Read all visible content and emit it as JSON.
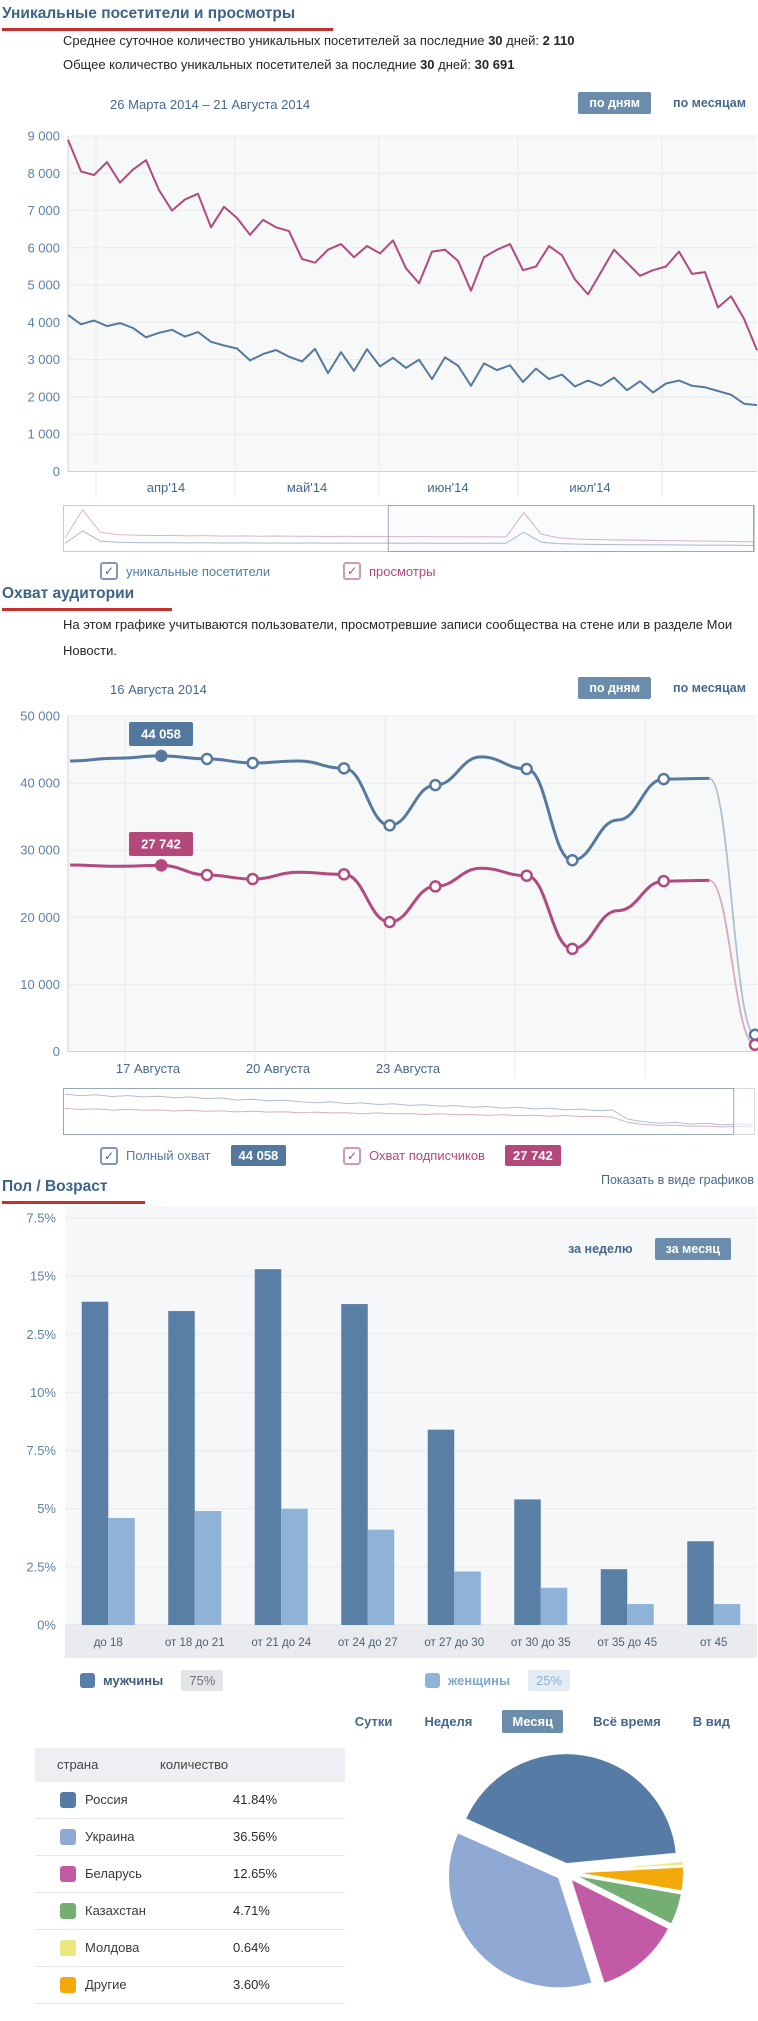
{
  "ui": {
    "heading_underline_color": "#C5302E",
    "accent_button_bg": "#6B8CAB"
  },
  "section1": {
    "heading": "Уникальные посетители и просмотры",
    "stat1_text": "Среднее суточное количество уникальных посетителей за последние",
    "stat1_bold": "30",
    "stat1_text2": "дней:",
    "stat1_value": "2 110",
    "stat2_text": "Общее количество уникальных посетителей за последние",
    "stat2_bold": "30",
    "stat2_text2": "дней:",
    "stat2_value": "30 691",
    "range_label": "26 Марта 2014 – 21 Августа 2014",
    "btn_by_days": "по дням",
    "btn_by_months": "по месяцам",
    "legend1_label": "уникальные посетители",
    "legend2_label": "просмотры"
  },
  "section2": {
    "heading": "Охват аудитории",
    "description": "На этом графике учитываются пользователи, просмотревшие записи сообщества на стене или в разделе Мои Новости.",
    "date_label": "16 Августа 2014",
    "btn_by_days": "по дням",
    "btn_by_months": "по месяцам",
    "legend1_label": "Полный охват",
    "legend1_badge": "44 058",
    "legend2_label": "Охват подписчиков",
    "legend2_badge": "27 742",
    "show_as_graphs_link": "Показать в виде графиков"
  },
  "section3": {
    "heading": "Пол / Возраст",
    "btn_week": "за неделю",
    "btn_month": "за месяц",
    "legend_male": "мужчины",
    "legend_male_share": "75%",
    "legend_female": "женщины",
    "legend_female_share": "25%"
  },
  "section4": {
    "tabs": [
      "Сутки",
      "Неделя",
      "Месяц",
      "Всё время",
      "В вид"
    ],
    "active_tab": "Месяц",
    "col_country": "страна",
    "col_count": "количество"
  },
  "chart_data": [
    {
      "type": "line",
      "title": "Уникальные посетители и просмотры",
      "date_range": "26 Марта 2014 – 21 Августа 2014",
      "ylim": [
        0,
        9000
      ],
      "yticks": [
        "0",
        "1 000",
        "2 000",
        "3 000",
        "4 000",
        "5 000",
        "6 000",
        "7 000",
        "8 000",
        "9 000"
      ],
      "xticks": [
        "апр'14",
        "май'14",
        "июн'14",
        "июл'14"
      ],
      "grid": true,
      "legend_position": "bottom",
      "series": [
        {
          "name": "уникальные посетители",
          "color": "#56799F",
          "values": [
            4200,
            3950,
            4050,
            3900,
            3980,
            3850,
            3600,
            3720,
            3800,
            3620,
            3740,
            3480,
            3380,
            3300,
            2980,
            3150,
            3260,
            3080,
            2950,
            3290,
            2640,
            3200,
            2700,
            3280,
            2820,
            3050,
            2780,
            3000,
            2480,
            3060,
            2840,
            2300,
            2900,
            2720,
            2850,
            2400,
            2760,
            2480,
            2600,
            2280,
            2440,
            2300,
            2520,
            2180,
            2420,
            2120,
            2360,
            2440,
            2300,
            2260,
            2160,
            2060,
            1820,
            1780
          ]
        },
        {
          "name": "просмотры",
          "color": "#B3497D",
          "values": [
            8900,
            8050,
            7950,
            8300,
            7750,
            8100,
            8350,
            7550,
            7000,
            7300,
            7450,
            6550,
            7100,
            6800,
            6350,
            6750,
            6550,
            6450,
            5700,
            5600,
            5950,
            6100,
            5750,
            6050,
            5850,
            6200,
            5450,
            5050,
            5900,
            5950,
            5650,
            4850,
            5750,
            5950,
            6100,
            5400,
            5500,
            6050,
            5800,
            5150,
            4750,
            5350,
            5950,
            5600,
            5250,
            5400,
            5500,
            5900,
            5300,
            5350,
            4400,
            4700,
            4100,
            3250
          ]
        }
      ],
      "navigator": {
        "selection_start_frac": 0.47,
        "visitors": [
          1350,
          4200,
          1900,
          1620,
          1560,
          1510,
          1530,
          1490,
          1500,
          1470,
          1480,
          1460,
          1470,
          1450,
          1455,
          1440,
          1450,
          1430,
          1440,
          1420,
          1430,
          1410,
          1415,
          1400,
          1405,
          1390,
          3900,
          1650,
          1320,
          1210,
          1150,
          1110,
          1080,
          1060,
          1040,
          1020,
          1000,
          980,
          950,
          900
        ],
        "views": [
          2600,
          8900,
          3900,
          3320,
          3240,
          3150,
          3180,
          3060,
          3120,
          3010,
          3060,
          2990,
          3030,
          2960,
          3000,
          2930,
          2960,
          2900,
          2940,
          2880,
          2910,
          2860,
          2890,
          2840,
          2870,
          2820,
          8300,
          3450,
          2620,
          2360,
          2260,
          2160,
          2110,
          2060,
          2010,
          1960,
          1910,
          1860,
          1810,
          1700
        ]
      }
    },
    {
      "type": "line",
      "smooth": true,
      "title": "Охват аудитории",
      "hover_date": "16 Августа 2014",
      "ylim": [
        0,
        50000
      ],
      "yticks": [
        "0",
        "10 000",
        "20 000",
        "30 000",
        "40 000",
        "50 000"
      ],
      "xticks": [
        "17 Августа",
        "20 Августа",
        "23 Августа"
      ],
      "grid": true,
      "tooltip_index": 2,
      "tooltips": [
        "44 058",
        "27 742"
      ],
      "marker_indices": [
        3,
        4,
        6,
        7,
        8,
        10,
        11,
        13,
        15
      ],
      "series": [
        {
          "name": "Полный охват",
          "color": "#56799F",
          "badge": "44 058",
          "values": [
            43300,
            43700,
            44058,
            43600,
            43000,
            43300,
            42200,
            33700,
            39700,
            43900,
            42100,
            28500,
            34500,
            40600,
            40700,
            2500
          ]
        },
        {
          "name": "Охват подписчиков",
          "color": "#B3497D",
          "badge": "27 742",
          "values": [
            27800,
            27600,
            27742,
            26300,
            25700,
            26700,
            26400,
            19300,
            24600,
            27300,
            26200,
            15300,
            21000,
            25400,
            25500,
            1000
          ]
        }
      ],
      "navigator": {
        "unselected_right_frac": 0.97,
        "full": [
          43,
          41.5,
          42.5,
          40.5,
          41.5,
          40,
          40.8,
          39,
          40,
          38,
          38.8,
          36.5,
          37.5,
          35.5,
          36.5,
          34.5,
          33.5,
          34.5,
          32.5,
          33.3,
          31.5,
          32.3,
          30.5,
          31.3,
          29.5,
          30.3,
          28.5,
          29.3,
          27.5,
          28.3,
          26.5,
          27.3,
          25.5,
          26.3,
          24.5,
          25.3,
          15,
          12,
          10.5,
          11.5,
          9.5,
          10.5,
          8.5,
          9.5,
          8.5
        ],
        "subs": [
          27,
          26,
          26.5,
          25.2,
          26,
          25,
          25.3,
          24.2,
          25,
          24,
          24.3,
          23.2,
          24,
          23,
          23.3,
          22.2,
          23,
          22,
          22.3,
          21.2,
          22,
          21,
          21.3,
          20.2,
          21,
          20,
          20.3,
          19.2,
          20,
          19,
          19.3,
          18.2,
          19,
          18,
          18.3,
          17.2,
          11.5,
          9,
          8,
          8.3,
          7,
          7.3,
          6.2,
          7,
          6.2
        ]
      }
    },
    {
      "type": "bar",
      "title": "Пол / Возраст",
      "ylim": [
        0,
        17.5
      ],
      "yticks_display_top_to_bottom": [
        "7.5%",
        "15%",
        "2.5%",
        "10%",
        "7.5%",
        "5%",
        "2.5%",
        "0%"
      ],
      "categories": [
        "до 18",
        "от 18 до 21",
        "от 21 до 24",
        "от 24 до 27",
        "от 27 до 30",
        "от 30 до 35",
        "от 35 до 45",
        "от 45"
      ],
      "series": [
        {
          "name": "мужчины",
          "share": "75%",
          "color": "#5A7FA6",
          "values": [
            13.9,
            13.5,
            15.3,
            13.8,
            8.4,
            5.4,
            2.4,
            3.6
          ]
        },
        {
          "name": "женщины",
          "share": "25%",
          "color": "#8FB2D8",
          "values": [
            4.6,
            4.9,
            5.0,
            4.1,
            2.3,
            1.6,
            0.9,
            0.9
          ]
        }
      ]
    },
    {
      "type": "pie",
      "title": "Страны",
      "columns": [
        "страна",
        "количество"
      ],
      "slices": [
        {
          "label": "Россия",
          "value": "41.84%",
          "pct": 41.84,
          "color": "#567CA6"
        },
        {
          "label": "Украина",
          "value": "36.56%",
          "pct": 36.56,
          "color": "#8FA9D4"
        },
        {
          "label": "Беларусь",
          "value": "12.65%",
          "pct": 12.65,
          "color": "#C25AA5"
        },
        {
          "label": "Казахстан",
          "value": "4.71%",
          "pct": 4.71,
          "color": "#75AE73"
        },
        {
          "label": "Молдова",
          "value": "0.64%",
          "pct": 0.64,
          "color": "#EBE77C"
        },
        {
          "label": "Другие",
          "value": "3.60%",
          "pct": 3.6,
          "color": "#F3A90A"
        }
      ],
      "draw_order": [
        0,
        4,
        5,
        3,
        2,
        1
      ],
      "start_angle_deg": -66,
      "legend_position": "table-left"
    }
  ]
}
